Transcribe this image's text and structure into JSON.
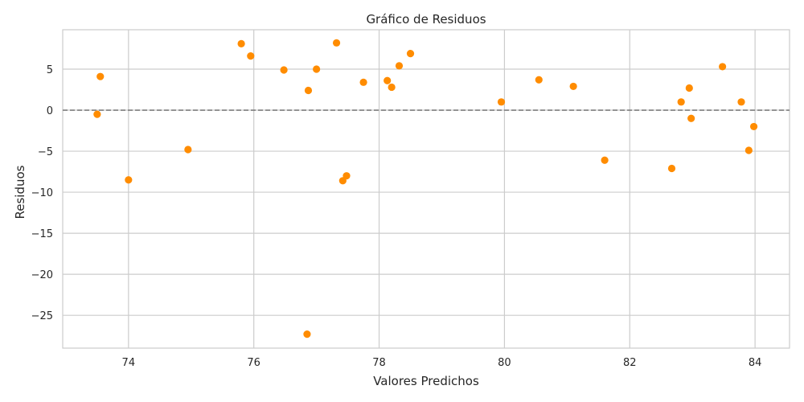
{
  "chart_data": {
    "type": "scatter",
    "title": "Gráfico de Residuos",
    "xlabel": "Valores Predichos",
    "ylabel": "Residuos",
    "xlim": [
      72.95,
      84.55
    ],
    "ylim": [
      -29.0,
      9.8
    ],
    "xticks": [
      74,
      76,
      78,
      80,
      82,
      84
    ],
    "xtick_labels": [
      "74",
      "76",
      "78",
      "80",
      "82",
      "84"
    ],
    "yticks": [
      5,
      0,
      -5,
      -10,
      -15,
      -20,
      -25
    ],
    "ytick_labels": [
      "5",
      "0",
      "−5",
      "−10",
      "−15",
      "−20",
      "−25"
    ],
    "grid": true,
    "reference_line": {
      "y": 0,
      "style": "dashed",
      "color": "#808080"
    },
    "point_color": "#ff8c00",
    "series": [
      {
        "points": [
          {
            "x": 73.5,
            "y": -0.5
          },
          {
            "x": 73.55,
            "y": 4.1
          },
          {
            "x": 74.0,
            "y": -8.5
          },
          {
            "x": 74.95,
            "y": -4.8
          },
          {
            "x": 75.8,
            "y": 8.1
          },
          {
            "x": 75.95,
            "y": 6.6
          },
          {
            "x": 76.48,
            "y": 4.9
          },
          {
            "x": 76.85,
            "y": -27.3
          },
          {
            "x": 76.87,
            "y": 2.4
          },
          {
            "x": 77.0,
            "y": 5.0
          },
          {
            "x": 77.32,
            "y": 8.2
          },
          {
            "x": 77.42,
            "y": -8.6
          },
          {
            "x": 77.48,
            "y": -8.0
          },
          {
            "x": 77.75,
            "y": 3.4
          },
          {
            "x": 78.13,
            "y": 3.6
          },
          {
            "x": 78.2,
            "y": 2.8
          },
          {
            "x": 78.32,
            "y": 5.4
          },
          {
            "x": 78.5,
            "y": 6.9
          },
          {
            "x": 79.95,
            "y": 1.0
          },
          {
            "x": 80.55,
            "y": 3.7
          },
          {
            "x": 81.1,
            "y": 2.9
          },
          {
            "x": 81.6,
            "y": -6.1
          },
          {
            "x": 82.67,
            "y": -7.1
          },
          {
            "x": 82.82,
            "y": 1.0
          },
          {
            "x": 82.95,
            "y": 2.7
          },
          {
            "x": 82.98,
            "y": -1.0
          },
          {
            "x": 83.48,
            "y": 5.3
          },
          {
            "x": 83.78,
            "y": 1.0
          },
          {
            "x": 83.9,
            "y": -4.9
          },
          {
            "x": 83.98,
            "y": -2.0
          }
        ]
      }
    ]
  }
}
